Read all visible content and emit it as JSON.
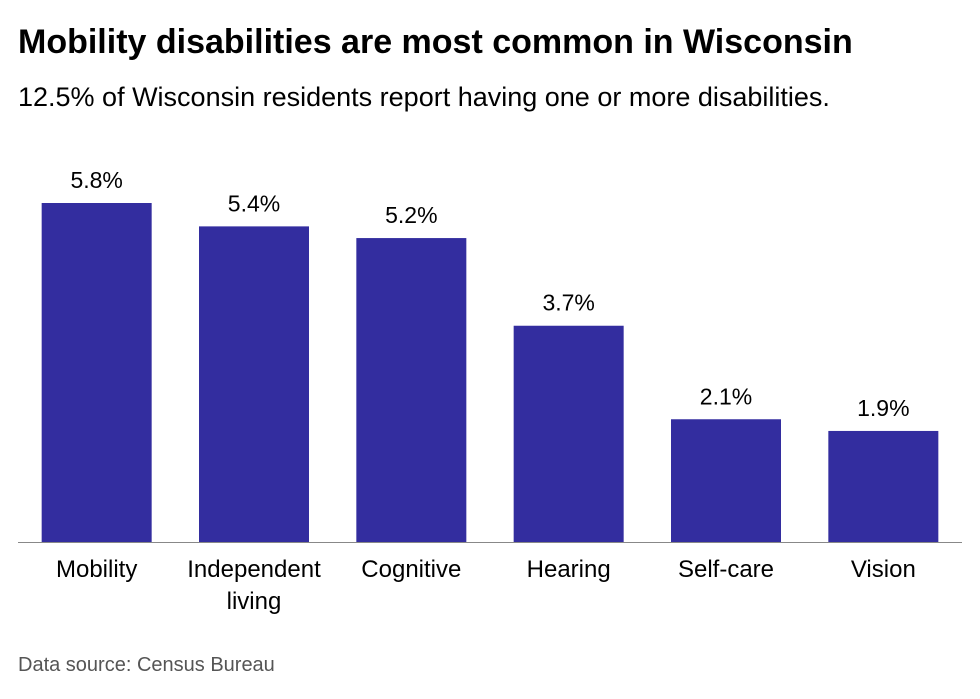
{
  "title": "Mobility disabilities are most common in Wisconsin",
  "subtitle": "12.5% of Wisconsin residents report having one or more disabilities.",
  "source": "Data source: Census Bureau",
  "colors": {
    "bar": "#332d9f",
    "axis": "#888888",
    "text": "#000000"
  },
  "chart_data": {
    "type": "bar",
    "title": "Mobility disabilities are most common in Wisconsin",
    "subtitle": "12.5% of Wisconsin residents report having one or more disabilities.",
    "categories": [
      [
        "Mobility"
      ],
      [
        "Independent",
        "living"
      ],
      [
        "Cognitive"
      ],
      [
        "Hearing"
      ],
      [
        "Self-care"
      ],
      [
        "Vision"
      ]
    ],
    "values": [
      5.8,
      5.4,
      5.2,
      3.7,
      2.1,
      1.9
    ],
    "value_labels": [
      "5.8%",
      "5.4%",
      "5.2%",
      "3.7%",
      "2.1%",
      "1.9%"
    ],
    "xlabel": "",
    "ylabel": "",
    "ylim": [
      0,
      5.8
    ],
    "grid": false,
    "legend": "none"
  }
}
